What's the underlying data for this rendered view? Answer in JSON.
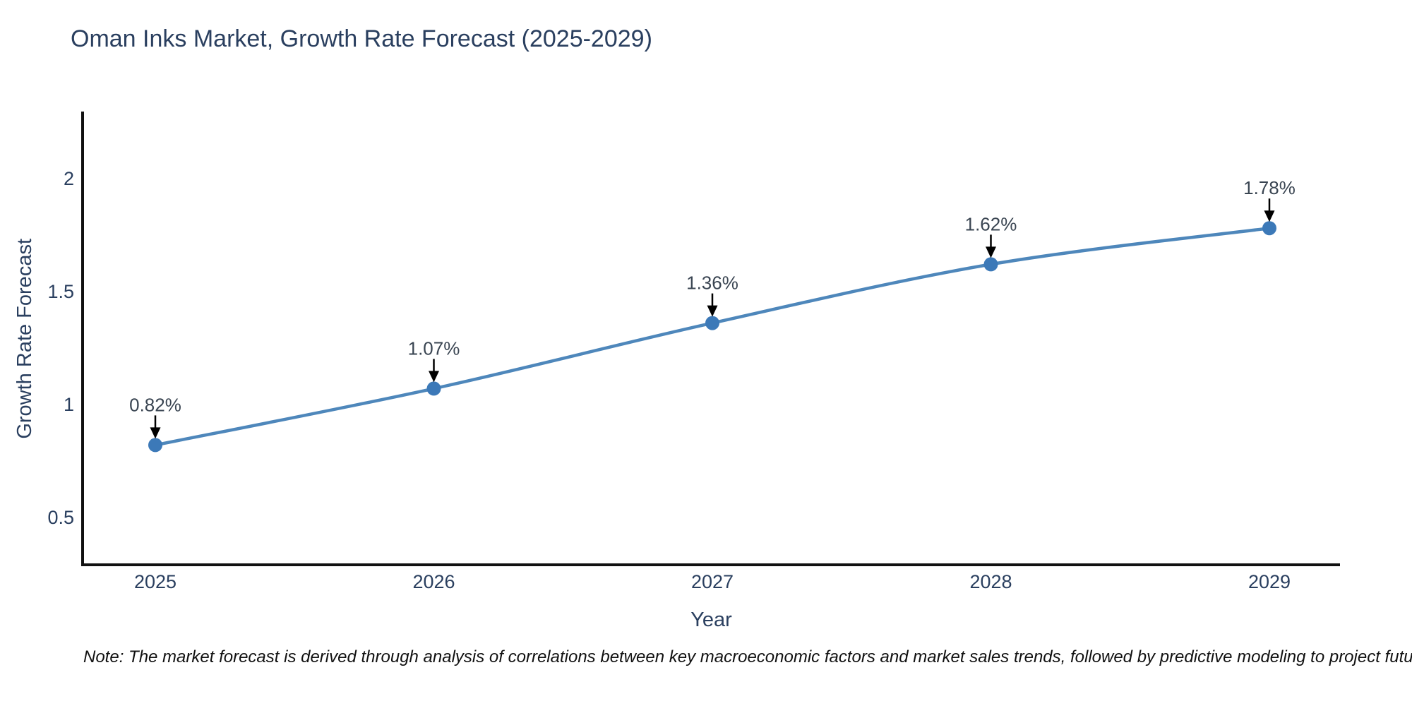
{
  "page": {
    "note": "Note: The market forecast is derived through analysis of correlations between key macroeconomic factors and market sales trends, followed by predictive modeling to project future sales"
  },
  "chart_data": {
    "type": "line",
    "title": "Oman Inks Market, Growth Rate Forecast (2025-2029)",
    "xlabel": "Year",
    "ylabel": "Growth Rate Forecast",
    "categories": [
      "2025",
      "2026",
      "2027",
      "2028",
      "2029"
    ],
    "series": [
      {
        "name": "Growth Rate Forecast",
        "values": [
          0.82,
          1.07,
          1.36,
          1.62,
          1.78
        ],
        "labels": [
          "0.82%",
          "1.07%",
          "1.36%",
          "1.62%",
          "1.78%"
        ]
      }
    ],
    "yticks": [
      "0.5",
      "1",
      "1.5",
      "2"
    ],
    "ytick_values": [
      0.5,
      1,
      1.5,
      2
    ],
    "ylim": [
      0.29,
      2.29
    ],
    "grid": false,
    "legend_position": "none",
    "line_shape": "spline",
    "annotations": "percent labels with downward black arrows above each data point",
    "colors": {
      "line": "#4e87bb",
      "marker": "#3c79b8",
      "axis": "#111111",
      "axis_text": "#2a3f5f",
      "annotation_text": "#3a4552",
      "arrow": "#000000",
      "background": "#ffffff"
    }
  }
}
